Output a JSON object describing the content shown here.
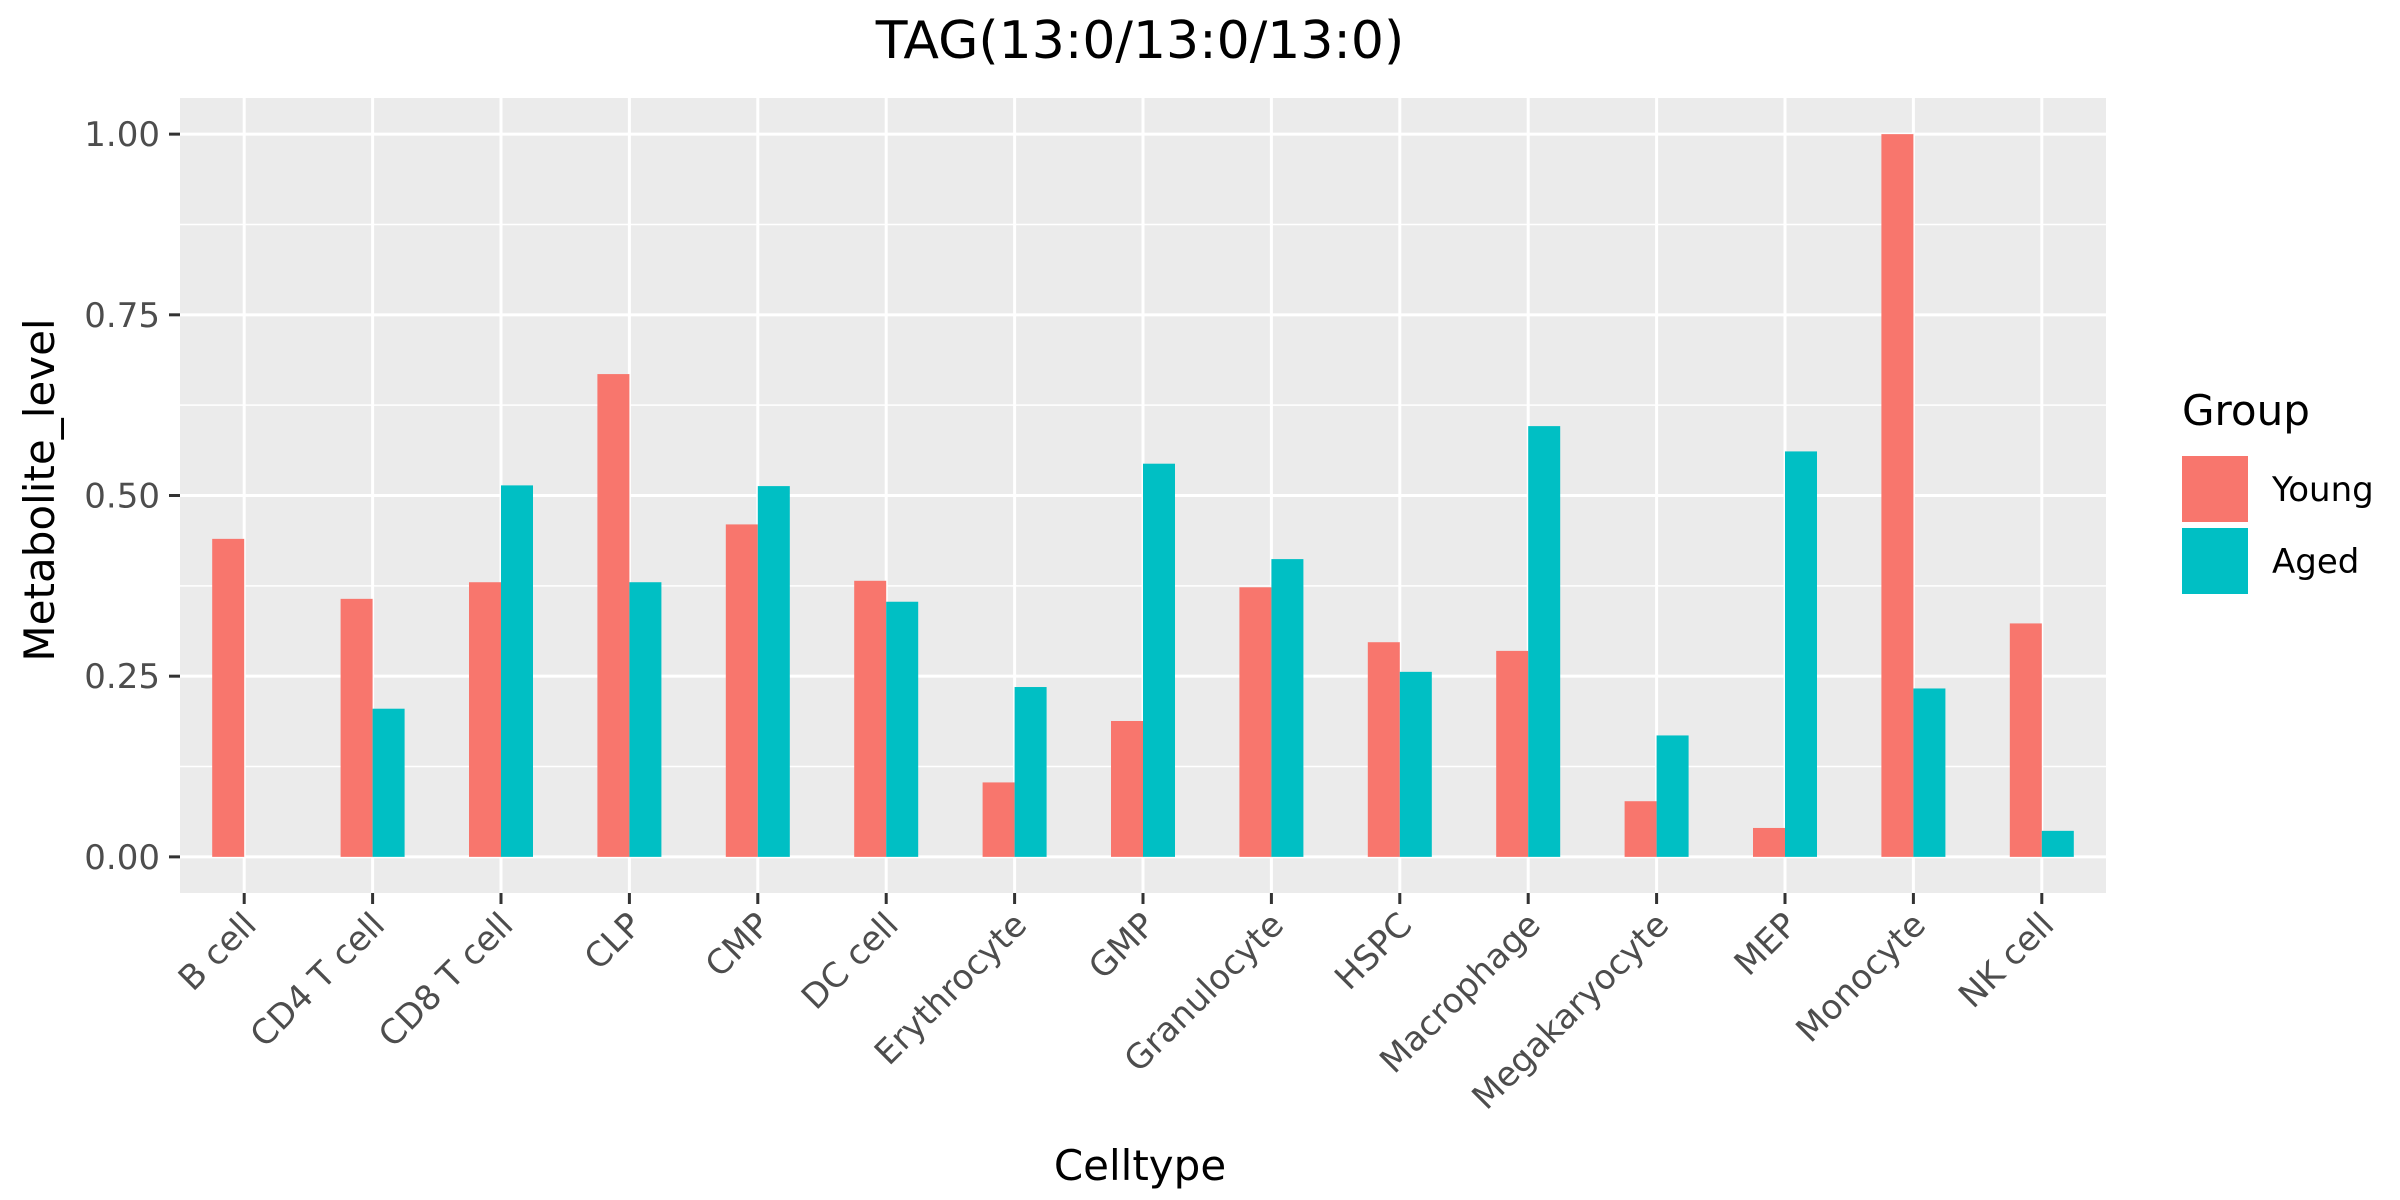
{
  "chart_data": {
    "type": "bar",
    "title": "TAG(13:0/13:0/13:0)",
    "xlabel": "Celltype",
    "ylabel": "Metabolite_level",
    "ylim": [
      -0.05,
      1.05
    ],
    "yticks": [
      "0.00",
      "0.25",
      "0.50",
      "0.75",
      "1.00"
    ],
    "grid": true,
    "legend_title": "Group",
    "legend_position": "right",
    "categories": [
      "B cell",
      "CD4 T cell",
      "CD8 T cell",
      "CLP",
      "CMP",
      "DC cell",
      "Erythrocyte",
      "GMP",
      "Granulocyte",
      "HSPC",
      "Macrophage",
      "Megakaryocyte",
      "MEP",
      "Monocyte",
      "NK cell"
    ],
    "series": [
      {
        "name": "Young",
        "color": "#F8766D",
        "values": [
          0.44,
          0.357,
          0.38,
          0.668,
          0.46,
          0.382,
          0.103,
          0.188,
          0.373,
          0.297,
          0.285,
          0.077,
          0.04,
          1.0,
          0.323
        ]
      },
      {
        "name": "Aged",
        "color": "#00BFC4",
        "values": [
          0.0,
          0.205,
          0.514,
          0.38,
          0.513,
          0.353,
          0.235,
          0.544,
          0.412,
          0.256,
          0.596,
          0.168,
          0.561,
          0.233,
          0.036
        ]
      }
    ]
  },
  "colors": {
    "panel_background": "#EBEBEB",
    "grid_line": "#FFFFFF",
    "tick_text": "#4D4D4D",
    "tick_mark": "#333333"
  }
}
